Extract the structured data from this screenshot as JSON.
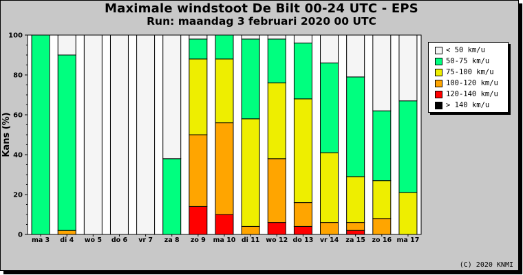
{
  "chart_data": {
    "type": "bar",
    "stacked": true,
    "title": "Maximale windstoot De Bilt 00-24 UTC - EPS",
    "subtitle": "Run: maandag  3 februari 2020   00 UTC",
    "ylabel": "Kans (%)",
    "xlabel": "",
    "ylim": [
      0,
      100
    ],
    "yticks": [
      "0",
      "20",
      "40",
      "60",
      "80",
      "100"
    ],
    "grid": false,
    "legend_position": "right",
    "categories": [
      "ma 3",
      "di 4",
      "wo 5",
      "do 6",
      "vr 7",
      "za 8",
      "zo 9",
      "ma 10",
      "di 11",
      "wo 12",
      "do 13",
      "vr 14",
      "za 15",
      "zo 16",
      "ma 17"
    ],
    "series": [
      {
        "name": "> 140 km/u",
        "color": "#000000",
        "values": [
          0,
          0,
          0,
          0,
          0,
          0,
          0,
          0,
          0,
          0,
          0,
          0,
          0,
          0,
          0
        ]
      },
      {
        "name": "120-140 km/u",
        "color": "#ff0000",
        "values": [
          0,
          0,
          0,
          0,
          0,
          0,
          14,
          10,
          0,
          6,
          4,
          0,
          2,
          0,
          0
        ]
      },
      {
        "name": "100-120 km/u",
        "color": "#ffa500",
        "values": [
          0,
          2,
          0,
          0,
          0,
          0,
          36,
          46,
          4,
          32,
          12,
          6,
          4,
          8,
          0
        ]
      },
      {
        "name": "75-100 km/u",
        "color": "#eeee00",
        "values": [
          0,
          0,
          0,
          0,
          0,
          0,
          38,
          32,
          54,
          38,
          52,
          35,
          23,
          19,
          21
        ]
      },
      {
        "name": "50-75 km/u",
        "color": "#00ff7f",
        "values": [
          100,
          88,
          0,
          0,
          0,
          38,
          10,
          12,
          40,
          22,
          28,
          45,
          50,
          35,
          46
        ]
      },
      {
        "name": "< 50 km/u",
        "color": "#f5f5f5",
        "values": [
          0,
          10,
          100,
          100,
          100,
          62,
          2,
          0,
          2,
          2,
          4,
          14,
          21,
          38,
          33
        ]
      }
    ]
  },
  "legend_order": [
    "< 50 km/u",
    "50-75 km/u",
    "75-100 km/u",
    "100-120 km/u",
    "120-140 km/u",
    "> 140 km/u"
  ],
  "copyright": "(C) 2020 KNMI",
  "colors": {
    "frame_background": "#c8c8c8",
    "plot_background": "#ffffff",
    "border": "#000000"
  }
}
